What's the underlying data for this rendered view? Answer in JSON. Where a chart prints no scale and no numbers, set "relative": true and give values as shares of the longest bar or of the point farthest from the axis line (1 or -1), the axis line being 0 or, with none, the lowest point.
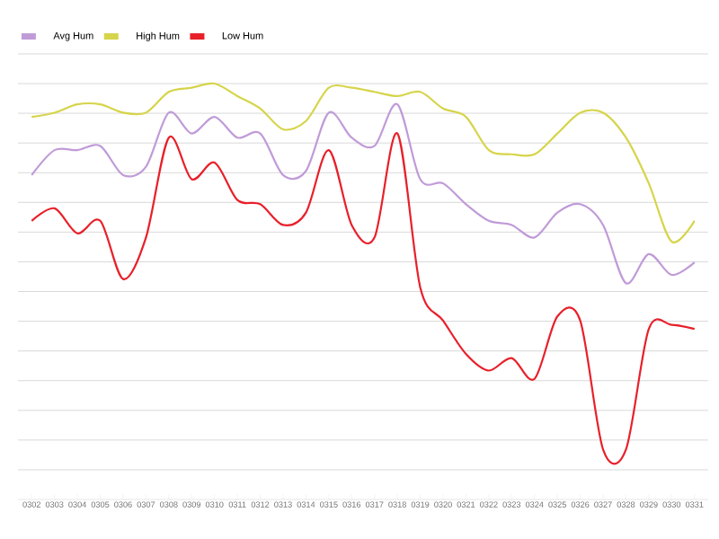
{
  "chart_data": {
    "type": "line",
    "relative": true,
    "grid": "y",
    "legend": "top left",
    "marker": "none",
    "line_style": "solid",
    "categories": [
      "0302",
      "0303",
      "0304",
      "0305",
      "0306",
      "0307",
      "0308",
      "0309",
      "0310",
      "0311",
      "0312",
      "0313",
      "0314",
      "0315",
      "0316",
      "0317",
      "0318",
      "0319",
      "0320",
      "0321",
      "0322",
      "0323",
      "0324",
      "0325",
      "0326",
      "0327",
      "0328",
      "0329",
      "0330",
      "0331"
    ],
    "series": [
      {
        "name": "Avg Hum",
        "color": "#c09bd8",
        "values": [
          0.78,
          0.84,
          0.84,
          0.85,
          0.78,
          0.8,
          0.93,
          0.88,
          0.92,
          0.87,
          0.88,
          0.78,
          0.79,
          0.93,
          0.87,
          0.85,
          0.95,
          0.77,
          0.76,
          0.71,
          0.67,
          0.66,
          0.63,
          0.69,
          0.71,
          0.66,
          0.52,
          0.59,
          0.54,
          0.57
        ]
      },
      {
        "name": "High Hum",
        "color": "#d6d44a",
        "values": [
          0.92,
          0.93,
          0.95,
          0.95,
          0.93,
          0.93,
          0.98,
          0.99,
          1.0,
          0.97,
          0.94,
          0.89,
          0.91,
          0.99,
          0.99,
          0.98,
          0.97,
          0.98,
          0.94,
          0.92,
          0.84,
          0.83,
          0.83,
          0.88,
          0.93,
          0.93,
          0.87,
          0.76,
          0.62,
          0.67
        ]
      },
      {
        "name": "Low Hum",
        "color": "#e8202a",
        "values": [
          0.67,
          0.7,
          0.64,
          0.67,
          0.53,
          0.63,
          0.87,
          0.77,
          0.81,
          0.72,
          0.71,
          0.66,
          0.69,
          0.84,
          0.66,
          0.63,
          0.88,
          0.51,
          0.43,
          0.35,
          0.31,
          0.34,
          0.29,
          0.44,
          0.43,
          0.12,
          0.12,
          0.41,
          0.42,
          0.41
        ]
      }
    ]
  }
}
